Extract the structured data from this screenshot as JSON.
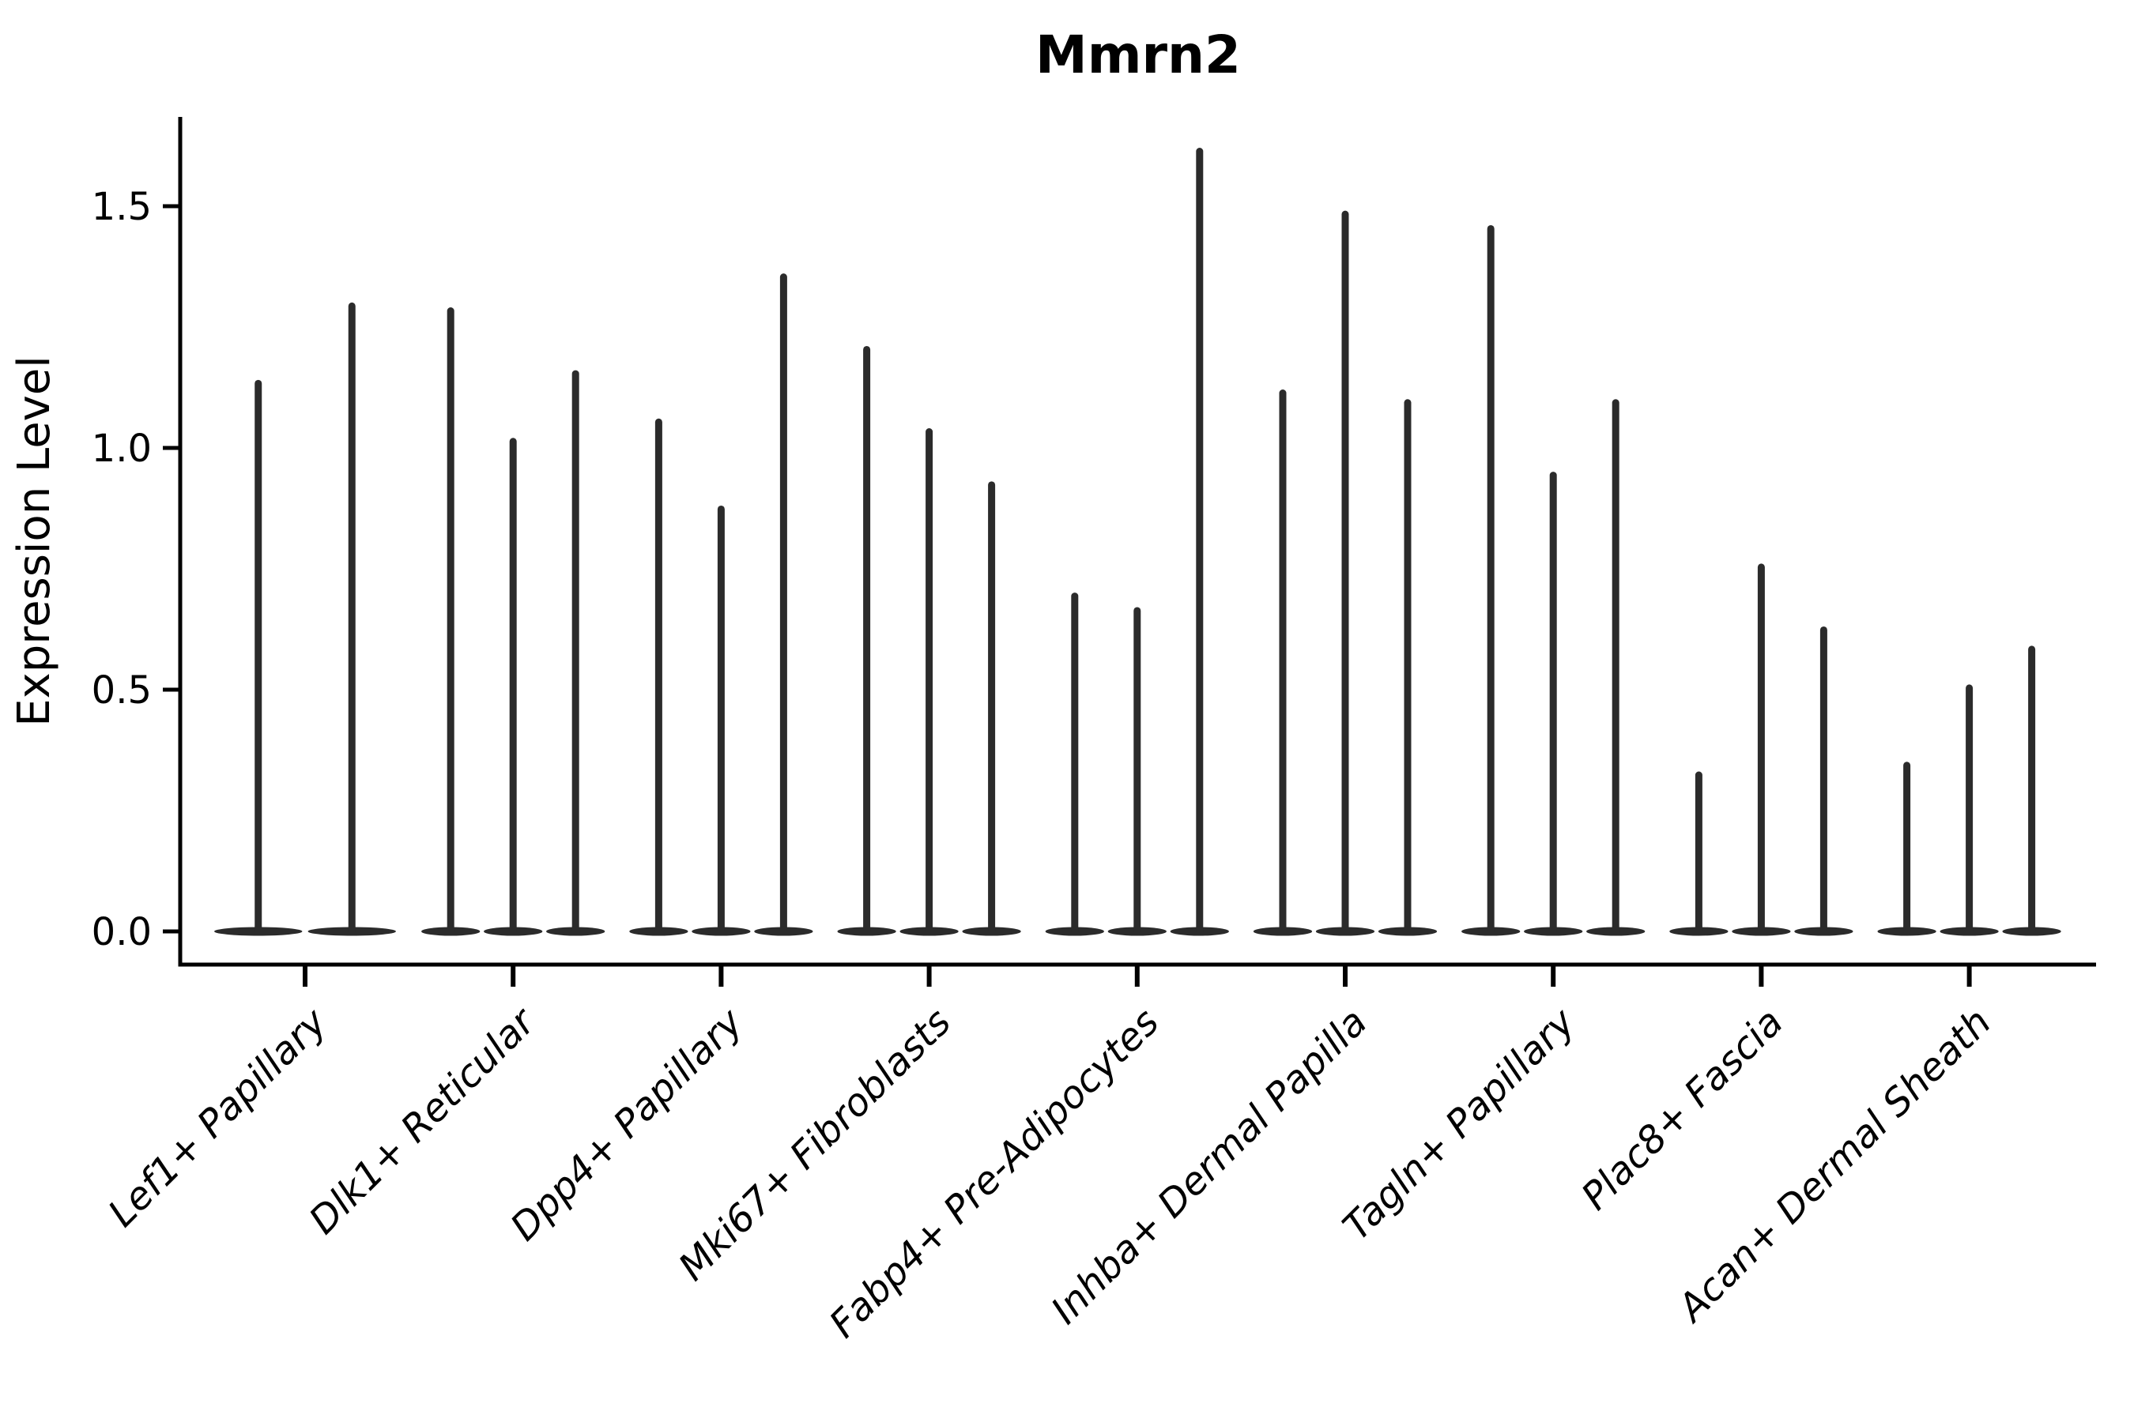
{
  "chart_data": {
    "type": "violin",
    "title": "Mmrn2",
    "xlabel": "",
    "ylabel": "Expression Level",
    "ylim": [
      -0.07,
      1.68
    ],
    "yticks": [
      0.0,
      0.5,
      1.0,
      1.5
    ],
    "ytick_labels": [
      "0.0",
      "0.5",
      "1.0",
      "1.5"
    ],
    "grid": false,
    "legend": null,
    "x_label_rotation_deg": 45,
    "categories": [
      "Lef1+ Papillary",
      "Dlk1+ Reticular",
      "Dpp4+ Papillary",
      "Mki67+ Fibroblasts",
      "Fabp4+ Pre-Adipocytes",
      "Inhba+ Dermal Papilla",
      "Tagln+ Papillary",
      "Plac8+ Fascia",
      "Acan+ Dermal Sheath"
    ],
    "groups": [
      {
        "category": "Lef1+ Papillary",
        "spike_maxima": [
          1.14,
          1.3
        ]
      },
      {
        "category": "Dlk1+ Reticular",
        "spike_maxima": [
          1.29,
          1.02,
          1.16
        ]
      },
      {
        "category": "Dpp4+ Papillary",
        "spike_maxima": [
          1.06,
          0.88,
          1.36
        ]
      },
      {
        "category": "Mki67+ Fibroblasts",
        "spike_maxima": [
          1.21,
          1.04,
          0.93
        ]
      },
      {
        "category": "Fabp4+ Pre-Adipocytes",
        "spike_maxima": [
          0.7,
          0.67,
          1.62
        ]
      },
      {
        "category": "Inhba+ Dermal Papilla",
        "spike_maxima": [
          1.12,
          1.49,
          1.1
        ]
      },
      {
        "category": "Tagln+ Papillary",
        "spike_maxima": [
          1.46,
          0.95,
          1.1
        ]
      },
      {
        "category": "Plac8+ Fascia",
        "spike_maxima": [
          0.33,
          0.76,
          0.63
        ]
      },
      {
        "category": "Acan+ Dermal Sheath",
        "spike_maxima": [
          0.35,
          0.51,
          0.59
        ]
      }
    ],
    "style": {
      "violin_color": "#2b2b2b",
      "axis_color": "#000000",
      "text_color": "#000000",
      "background": "#ffffff"
    },
    "note": "Needle-thin violins (near-zero density except at 0) per cluster; spike_maxima are the top expression values reached by each violin spike, left to right within each cluster."
  }
}
